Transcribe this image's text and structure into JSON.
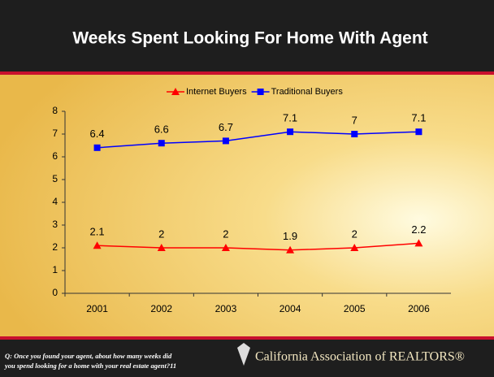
{
  "chart_data": {
    "type": "line",
    "title": "Weeks Spent Looking For Home With Agent",
    "categories": [
      "2001",
      "2002",
      "2003",
      "2004",
      "2005",
      "2006"
    ],
    "series": [
      {
        "name": "Internet Buyers",
        "color": "#ff0000",
        "marker": "triangle",
        "values": [
          2.1,
          2.0,
          2.0,
          1.9,
          2.0,
          2.2
        ]
      },
      {
        "name": "Traditional Buyers",
        "color": "#0000ff",
        "marker": "square",
        "values": [
          6.4,
          6.6,
          6.7,
          7.1,
          7.0,
          7.1
        ]
      }
    ],
    "ylim": [
      0,
      8
    ],
    "yticks": [
      0,
      1,
      2,
      3,
      4,
      5,
      6,
      7,
      8
    ],
    "grid": false,
    "legend": "top"
  },
  "footer": {
    "question": [
      "Q: Once you found your agent, about how many weeks did",
      "you spend looking for a home with your real estate agent?11"
    ],
    "brand": "California Association of REALTORS®"
  }
}
